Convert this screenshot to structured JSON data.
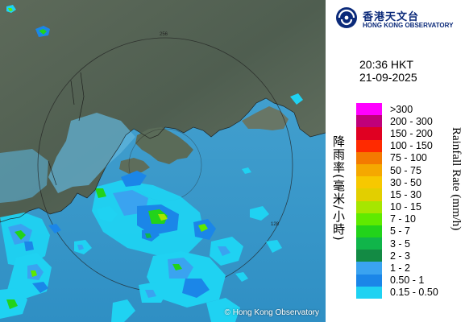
{
  "header": {
    "logo_zh": "香港天文台",
    "logo_en": "HONG KONG OBSERVATORY"
  },
  "time": {
    "clock": "20:36 HKT",
    "date": "21-09-2025"
  },
  "legend": {
    "title_zh": "降雨率(毫米/小時)",
    "title_en": "Rainfall Rate (mm/h)",
    "items": [
      {
        "label": ">300",
        "color": "#ff00ff"
      },
      {
        "label": "200 - 300",
        "color": "#c0007a"
      },
      {
        "label": "150 - 200",
        "color": "#e00022"
      },
      {
        "label": "100 - 150",
        "color": "#ff2a00"
      },
      {
        "label": "75 - 100",
        "color": "#f47a00"
      },
      {
        "label": "50 - 75",
        "color": "#f5a800"
      },
      {
        "label": "30 - 50",
        "color": "#f7c800"
      },
      {
        "label": "15 - 30",
        "color": "#e2cf00"
      },
      {
        "label": "10 - 15",
        "color": "#a6e600"
      },
      {
        "label": "7 - 10",
        "color": "#5fea00"
      },
      {
        "label": "5 - 7",
        "color": "#22d31a"
      },
      {
        "label": "3 - 5",
        "color": "#10b54a"
      },
      {
        "label": "2 - 3",
        "color": "#138a44"
      },
      {
        "label": "1 - 2",
        "color": "#3aa3f0"
      },
      {
        "label": "0.50 - 1",
        "color": "#1b86e8"
      },
      {
        "label": "0.15 - 0.50",
        "color": "#1fd2f2"
      }
    ]
  },
  "map": {
    "copyright": "© Hong Kong Observatory",
    "range_labels": [
      "256",
      "128"
    ]
  }
}
